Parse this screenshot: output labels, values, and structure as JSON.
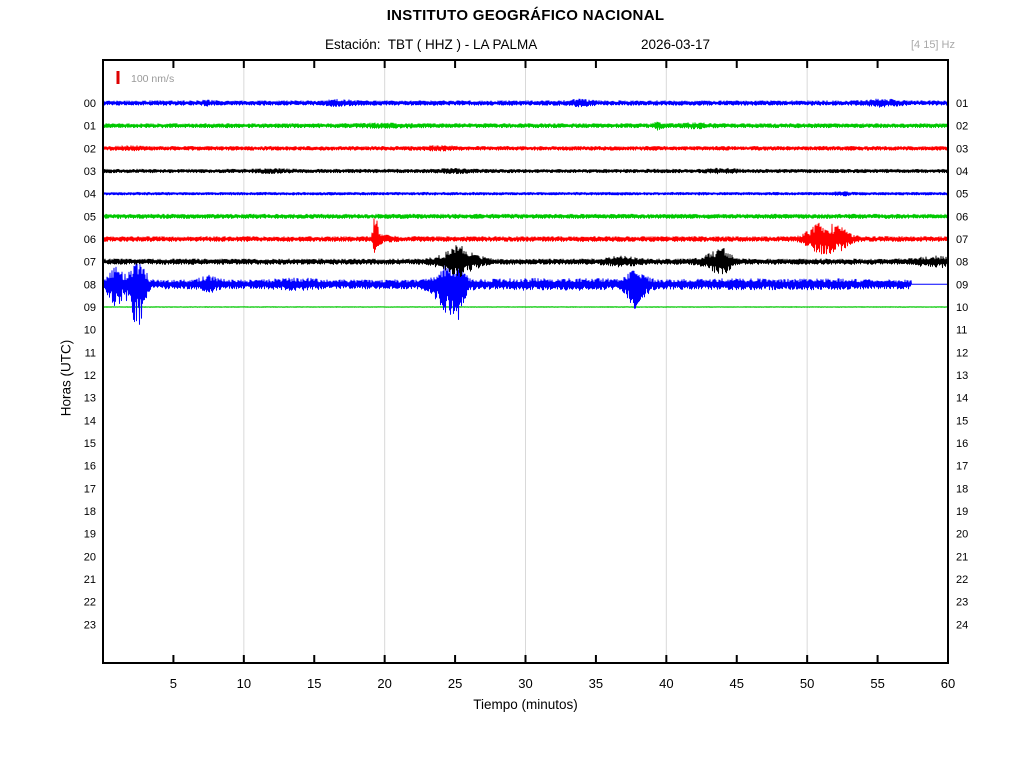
{
  "header": {
    "title": "INSTITUTO GEOGRÁFICO NACIONAL",
    "station_line": "Estación:  TBT ( HHZ ) - LA PALMA",
    "date": "2026-03-17",
    "filter_label": "[4 15] Hz"
  },
  "chart_data": {
    "type": "line",
    "subtype": "helicorder-seismogram",
    "title": "INSTITUTO GEOGRÁFICO NACIONAL",
    "subtitle_station": "Estación:  TBT ( HHZ ) - LA PALMA",
    "subtitle_date": "2026-03-17",
    "filter_label": "[4 15] Hz",
    "scale_label": "100 nm/s",
    "scale_marker_color": "#dd0000",
    "x_axis": {
      "label": "Tiempo (minutos)",
      "range": [
        0,
        60
      ],
      "ticks": [
        5,
        10,
        15,
        20,
        25,
        30,
        35,
        40,
        45,
        50,
        55,
        60
      ],
      "gridlines": [
        10,
        20,
        30,
        40,
        50
      ],
      "gridline_color": "#d9d9d9"
    },
    "y_axis": {
      "label": "Horas (UTC)",
      "left_labels": [
        "00",
        "01",
        "02",
        "03",
        "04",
        "05",
        "06",
        "07",
        "08",
        "09",
        "10",
        "11",
        "12",
        "13",
        "14",
        "15",
        "16",
        "17",
        "18",
        "19",
        "20",
        "21",
        "22",
        "23"
      ],
      "right_labels": [
        "01",
        "02",
        "03",
        "04",
        "05",
        "06",
        "07",
        "08",
        "09",
        "10",
        "11",
        "12",
        "13",
        "14",
        "15",
        "16",
        "17",
        "18",
        "19",
        "20",
        "21",
        "22",
        "23",
        "24"
      ]
    },
    "trace_color_cycle": [
      "#0000ff",
      "#00c800",
      "#ff0000",
      "#000000"
    ],
    "rows": [
      {
        "hour": "00",
        "hour_index": 0,
        "color": "#0000ff",
        "base_amp": 2.2,
        "start_min": 0,
        "end_min": 60,
        "events": [
          {
            "t": 7.5,
            "w": 0.4,
            "a": 1.2
          },
          {
            "t": 16.8,
            "w": 0.7,
            "a": 1.6
          },
          {
            "t": 33.8,
            "w": 0.7,
            "a": 1.8
          },
          {
            "t": 55.3,
            "w": 0.9,
            "a": 2.0
          }
        ]
      },
      {
        "hour": "01",
        "hour_index": 1,
        "color": "#00c800",
        "base_amp": 2.0,
        "start_min": 0,
        "end_min": 60,
        "events": [
          {
            "t": 20.0,
            "w": 1.5,
            "a": 0.8
          },
          {
            "t": 39.4,
            "w": 0.25,
            "a": 2.5
          },
          {
            "t": 42.0,
            "w": 0.8,
            "a": 1.2
          }
        ]
      },
      {
        "hour": "02",
        "hour_index": 2,
        "color": "#ff0000",
        "base_amp": 1.9,
        "start_min": 0,
        "end_min": 60,
        "events": [
          {
            "t": 2.0,
            "w": 0.6,
            "a": 1.0
          },
          {
            "t": 24.0,
            "w": 0.8,
            "a": 1.0
          }
        ]
      },
      {
        "hour": "03",
        "hour_index": 3,
        "color": "#000000",
        "base_amp": 1.7,
        "start_min": 0,
        "end_min": 60,
        "events": [
          {
            "t": 12.0,
            "w": 1.0,
            "a": 0.8
          },
          {
            "t": 25.0,
            "w": 0.8,
            "a": 1.0
          },
          {
            "t": 44.0,
            "w": 0.8,
            "a": 1.2
          }
        ]
      },
      {
        "hour": "04",
        "hour_index": 4,
        "color": "#0000ff",
        "base_amp": 1.3,
        "start_min": 0,
        "end_min": 60,
        "events": [
          {
            "t": 52.5,
            "w": 0.4,
            "a": 1.2
          }
        ]
      },
      {
        "hour": "05",
        "hour_index": 5,
        "color": "#00c800",
        "base_amp": 2.1,
        "start_min": 0,
        "end_min": 60,
        "events": []
      },
      {
        "hour": "06",
        "hour_index": 6,
        "color": "#ff0000",
        "base_amp": 2.4,
        "start_min": 0,
        "end_min": 60,
        "events": [
          {
            "t": 19.35,
            "w": 0.13,
            "a": 24,
            "asym": 0.55
          },
          {
            "t": 19.8,
            "w": 0.5,
            "a": 2.5
          },
          {
            "t": 50.6,
            "w": 0.5,
            "a": 6
          },
          {
            "t": 51.4,
            "w": 0.9,
            "a": 10
          },
          {
            "t": 52.3,
            "w": 0.5,
            "a": 5
          }
        ]
      },
      {
        "hour": "07",
        "hour_index": 7,
        "color": "#000000",
        "base_amp": 2.7,
        "start_min": 0,
        "end_min": 60,
        "events": [
          {
            "t": 24.8,
            "w": 0.8,
            "a": 8
          },
          {
            "t": 25.4,
            "w": 0.35,
            "a": 10,
            "asym": 0.6
          },
          {
            "t": 26.3,
            "w": 0.6,
            "a": 4
          },
          {
            "t": 36.8,
            "w": 0.8,
            "a": 3
          },
          {
            "t": 43.6,
            "w": 0.7,
            "a": 8
          },
          {
            "t": 44.2,
            "w": 0.35,
            "a": 5
          },
          {
            "t": 59.3,
            "w": 1.2,
            "a": 3.5
          }
        ]
      },
      {
        "hour": "08",
        "hour_index": 8,
        "color": "#0000ff",
        "base_amp": 4.5,
        "start_min": 0,
        "end_min": 57.4,
        "events": [
          {
            "t": 0.9,
            "w": 0.4,
            "a": 13,
            "asym": 1.4
          },
          {
            "t": 2.35,
            "w": 0.4,
            "a": 20,
            "asym": 1.9
          },
          {
            "t": 2.9,
            "w": 0.18,
            "a": 9,
            "asym": 2.3
          },
          {
            "t": 7.5,
            "w": 0.5,
            "a": 5
          },
          {
            "t": 13.8,
            "w": 1.2,
            "a": 2
          },
          {
            "t": 24.5,
            "w": 0.7,
            "a": 15,
            "asym": 1.7
          },
          {
            "t": 25.2,
            "w": 0.35,
            "a": 9,
            "asym": 2.0
          },
          {
            "t": 30.0,
            "w": 2.0,
            "a": 1.5
          },
          {
            "t": 34.5,
            "w": 1.5,
            "a": 1.5
          },
          {
            "t": 37.9,
            "w": 0.5,
            "a": 12,
            "asym": 1.8
          },
          {
            "t": 45.0,
            "w": 3.0,
            "a": 1.2
          },
          {
            "t": 52.0,
            "w": 2.0,
            "a": 1.0
          }
        ]
      },
      {
        "hour": "09",
        "hour_index": 9,
        "color": "#00c800",
        "base_amp": 0.35,
        "start_min": 0,
        "end_min": 60,
        "events": []
      }
    ]
  }
}
